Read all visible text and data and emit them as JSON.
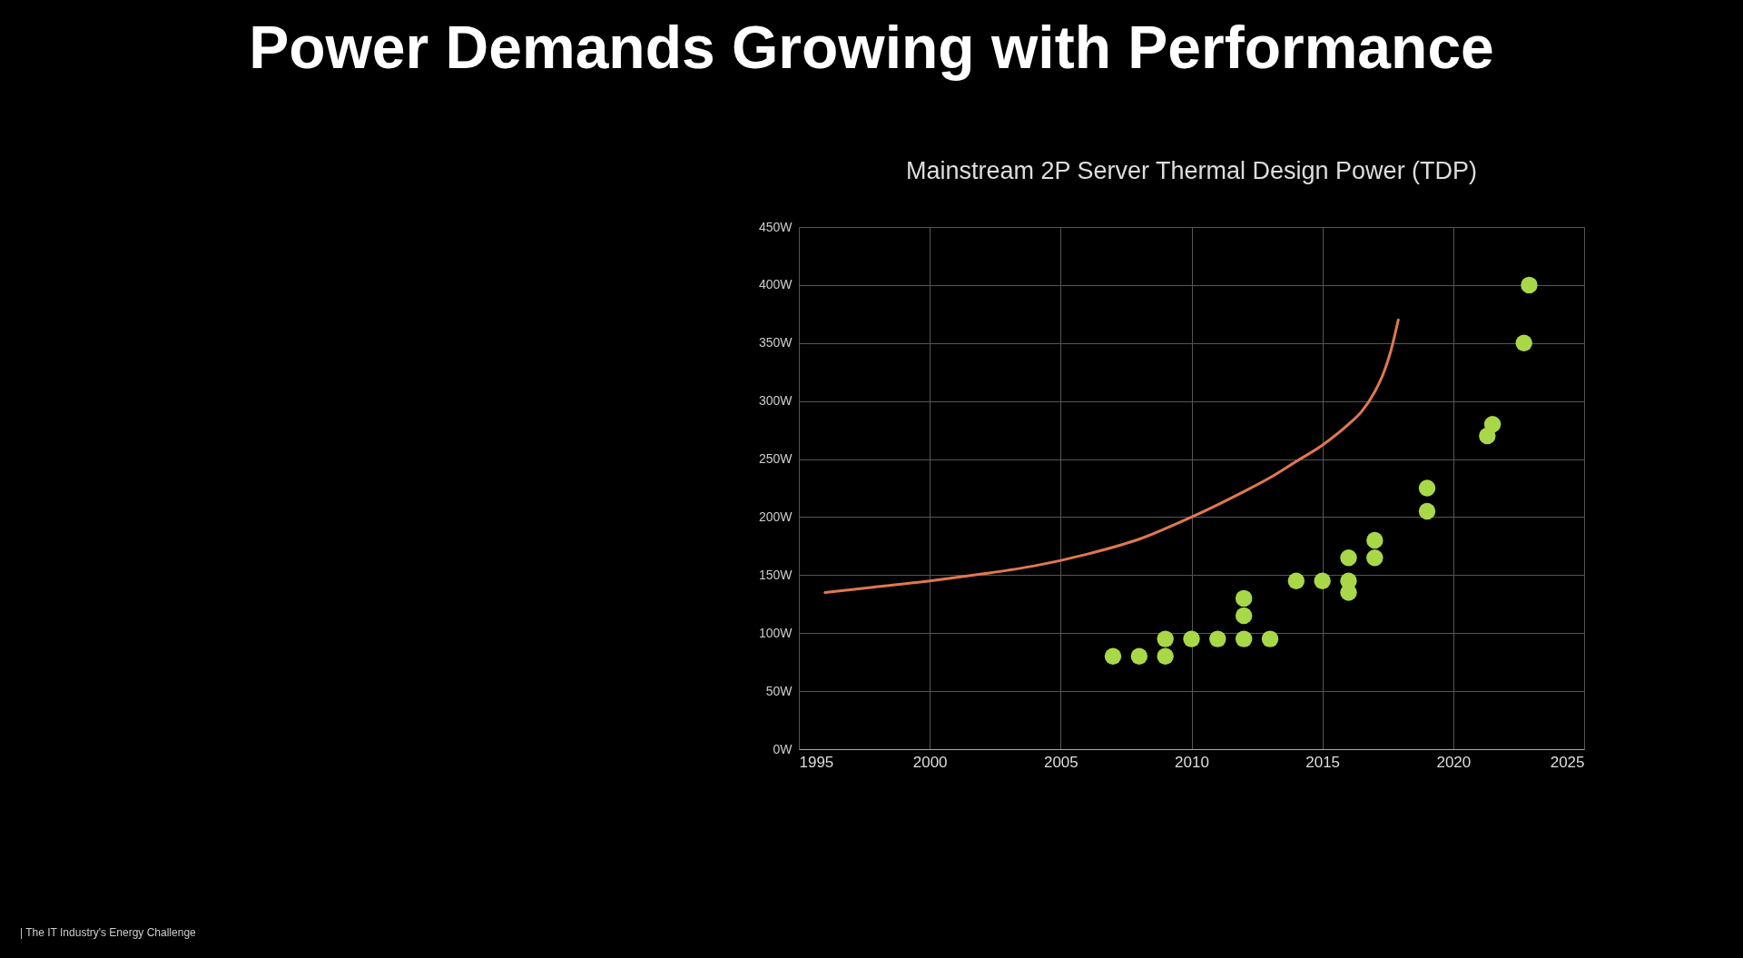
{
  "chart_data": {
    "type": "scatter",
    "title": "Power Demands Growing with Performance",
    "subtitle": "Mainstream 2P Server Thermal Design Power (TDP)",
    "annotations": [
      "| The IT Industry's Energy Challenge"
    ],
    "series": [
      {
        "type": "line",
        "color": "#e07850",
        "x": [
          1996,
          1998,
          2000,
          2002,
          2004,
          2006,
          2008,
          2010,
          2012,
          2013,
          2014,
          2015,
          2016,
          2016.5,
          2017,
          2017.3,
          2017.6,
          2017.9
        ],
        "values": [
          135,
          140,
          145,
          151,
          158,
          168,
          181,
          200,
          222,
          234,
          248,
          262,
          280,
          291,
          308,
          322,
          342,
          370
        ]
      },
      {
        "color": "#a8d848",
        "marker": "circle",
        "x": [
          2007,
          2008,
          2009,
          2009,
          2010,
          2011,
          2012,
          2012,
          2012,
          2013,
          2014,
          2015,
          2016,
          2016,
          2016,
          2017,
          2017,
          2019,
          2019,
          2021.3,
          2021.5,
          2022.7,
          2022.9
        ],
        "values": [
          80,
          80,
          80,
          95,
          95,
          95,
          95,
          115,
          130,
          95,
          145,
          145,
          135,
          145,
          165,
          165,
          180,
          205,
          225,
          270,
          280,
          350,
          400
        ]
      }
    ],
    "xlim": [
      1995,
      2025
    ],
    "xticks": [
      1995,
      2000,
      2005,
      2010,
      2015,
      2020,
      2025
    ],
    "ylim": [
      0,
      450
    ],
    "yticks": [
      {
        "value": 0,
        "label": "0W"
      },
      {
        "value": 50,
        "label": "50W"
      },
      {
        "value": 100,
        "label": "100W"
      },
      {
        "value": 150,
        "label": "150W"
      },
      {
        "value": 200,
        "label": "200W"
      },
      {
        "value": 250,
        "label": "250W"
      },
      {
        "value": 300,
        "label": "300W"
      },
      {
        "value": 350,
        "label": "350W"
      },
      {
        "value": 400,
        "label": "400W"
      },
      {
        "value": 450,
        "label": "450W"
      }
    ],
    "grid": true,
    "line_style": "solid"
  }
}
